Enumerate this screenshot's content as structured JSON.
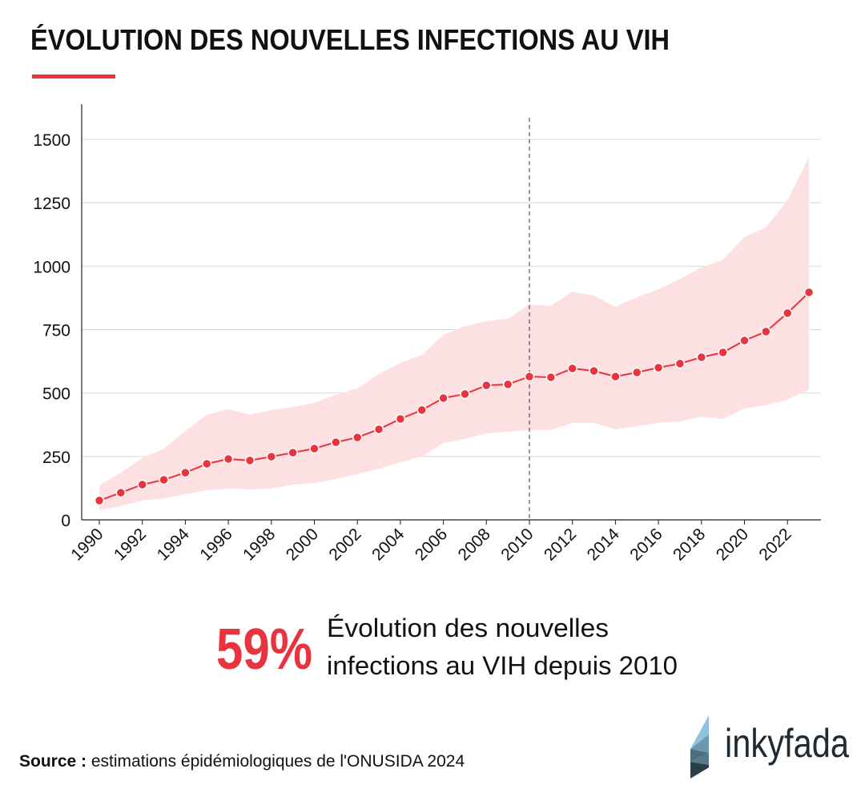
{
  "title": "ÉVOLUTION DES NOUVELLES INFECTIONS AU VIH",
  "accent_color": "#e8343f",
  "band_color": "#fde0e2",
  "chart_data": {
    "type": "line",
    "title": "",
    "xlabel": "",
    "ylabel": "",
    "ylim": [
      0,
      1650
    ],
    "xlim": [
      1990,
      2023
    ],
    "yticks": [
      0,
      250,
      500,
      750,
      1000,
      1250,
      1500
    ],
    "xticks": [
      1990,
      1992,
      1994,
      1996,
      1998,
      2000,
      2002,
      2004,
      2006,
      2008,
      2010,
      2012,
      2014,
      2016,
      2018,
      2020,
      2022
    ],
    "grid": "horizontal",
    "reference_line_x": 2010,
    "x": [
      1990,
      1991,
      1992,
      1993,
      1994,
      1995,
      1996,
      1997,
      1998,
      1999,
      2000,
      2001,
      2002,
      2003,
      2004,
      2005,
      2006,
      2007,
      2008,
      2009,
      2010,
      2011,
      2012,
      2013,
      2014,
      2015,
      2016,
      2017,
      2018,
      2019,
      2020,
      2021,
      2022,
      2023
    ],
    "series": [
      {
        "values": [
          76,
          107,
          139,
          158,
          186,
          221,
          240,
          234,
          249,
          265,
          281,
          306,
          325,
          357,
          398,
          433,
          480,
          496,
          530,
          534,
          565,
          562,
          597,
          587,
          565,
          581,
          600,
          616,
          641,
          660,
          707,
          742,
          815,
          897
        ]
      }
    ],
    "band_upper": [
      136,
      186,
      243,
      281,
      350,
      414,
      436,
      414,
      433,
      445,
      461,
      493,
      518,
      575,
      619,
      650,
      729,
      764,
      783,
      793,
      849,
      843,
      900,
      884,
      840,
      878,
      909,
      950,
      995,
      1026,
      1115,
      1153,
      1260,
      1430
    ],
    "band_lower": [
      38,
      54,
      76,
      85,
      101,
      117,
      123,
      120,
      123,
      139,
      145,
      161,
      180,
      202,
      227,
      249,
      303,
      319,
      341,
      347,
      354,
      354,
      382,
      382,
      357,
      369,
      382,
      388,
      407,
      398,
      439,
      452,
      474,
      515
    ]
  },
  "highlight": {
    "value": "59%",
    "line1": "Évolution des nouvelles",
    "line2": "infections au VIH depuis 2010"
  },
  "source": {
    "label": "Source :",
    "text": " estimations épidémiologiques de l'ONUSIDA 2024"
  },
  "logo": {
    "text": "inkyfada"
  }
}
